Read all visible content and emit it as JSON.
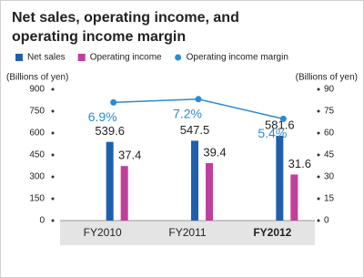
{
  "chart_data": {
    "type": "bar",
    "title": "Net sales, operating income, and operating income margin",
    "y_label": "(Billions of yen)",
    "y2_label": "(Billions of yen)",
    "categories": [
      "FY2010",
      "FY2011",
      "FY2012"
    ],
    "ylim": [
      0,
      900
    ],
    "yticks": [
      0,
      150,
      300,
      450,
      600,
      750,
      900
    ],
    "y2lim": [
      0,
      90
    ],
    "y2ticks": [
      0,
      15,
      30,
      45,
      60,
      75,
      90
    ],
    "y3lim": [
      -3.9,
      8.1
    ],
    "series": [
      {
        "name": "Net sales",
        "color": "#1f5fae",
        "values": [
          539.6,
          547.5,
          581.6
        ]
      },
      {
        "name": "Operating income",
        "color": "#c13f9c",
        "values": [
          37.4,
          39.4,
          31.6
        ],
        "axis": "y2"
      },
      {
        "name": "Operating income margin",
        "color": "#2b8ad3",
        "type": "line",
        "axis": "y3",
        "values": [
          6.9,
          7.2,
          5.4
        ],
        "value_labels": [
          "6.9%",
          "7.2%",
          "5.4%"
        ]
      }
    ]
  }
}
